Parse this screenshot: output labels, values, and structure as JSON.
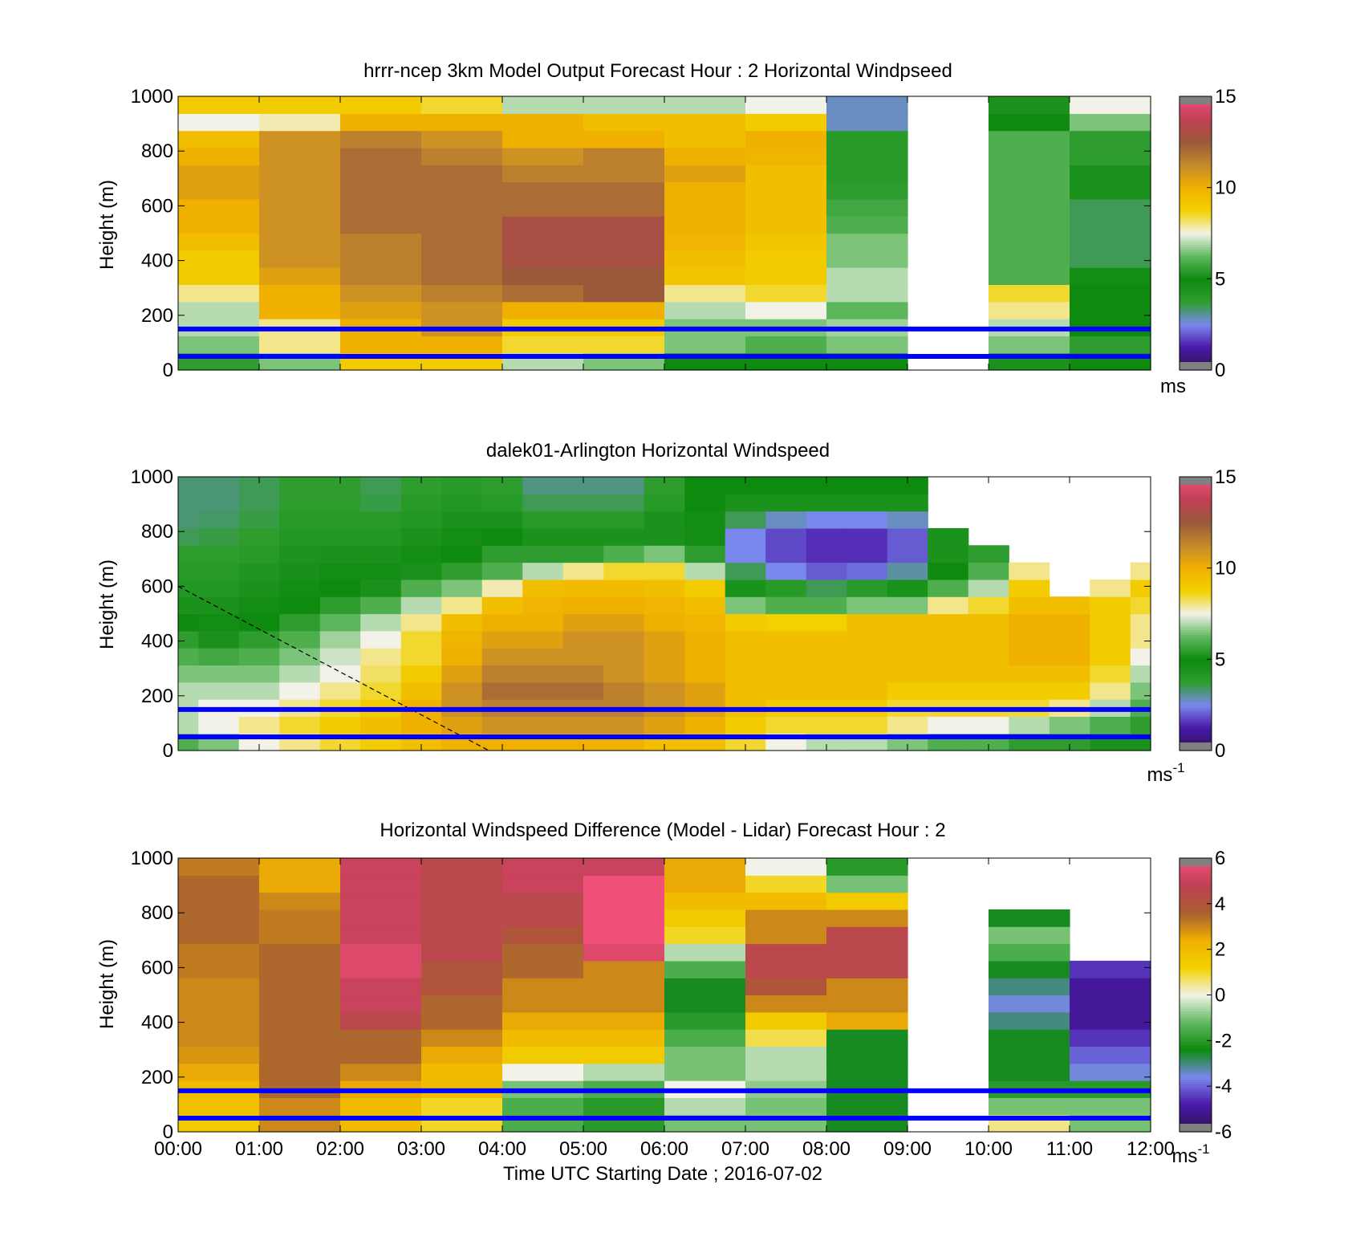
{
  "colors": {
    "background": "#ffffff",
    "ref_lines": "#0000ff",
    "speed_scale": [
      "#2a1650",
      "#4a18a8",
      "#7a88ee",
      "#2f9e2f",
      "#0e8a0e",
      "#5fb85f",
      "#f2f2e8",
      "#f2d200",
      "#f0b000",
      "#c58a2c",
      "#9a5a3a",
      "#c04055",
      "#f0507a"
    ],
    "diff_scale": [
      "#2a1650",
      "#4a18a8",
      "#7a88ee",
      "#0e8a0e",
      "#5fb85f",
      "#f2f2e8",
      "#f2d200",
      "#f0b000",
      "#a86030",
      "#c04055",
      "#f0507a"
    ]
  },
  "chart_data": [
    {
      "id": "model",
      "type": "heatmap",
      "title": "hrrr-ncep 3km Model Output   Forecast Hour : 2 Horizontal Windpseed",
      "xlabel": "",
      "ylabel": "Height (m)",
      "xlim": [
        "00:00",
        "12:00"
      ],
      "ylim": [
        0,
        1000
      ],
      "y_ticks": [
        "0",
        "200",
        "400",
        "600",
        "800",
        "1000"
      ],
      "show_x_tick_labels": false,
      "hour_columns": [
        [
          5.5,
          6.5,
          7,
          7,
          8,
          9,
          9,
          9.5,
          10,
          10,
          10.5,
          10.5,
          10,
          9.5,
          7.5,
          9
        ],
        [
          6.5,
          8,
          8,
          10,
          10,
          10.5,
          11,
          11,
          11,
          11,
          11,
          11,
          11,
          11,
          7.8,
          9
        ],
        [
          9,
          10,
          10,
          10.5,
          11,
          11.5,
          11.5,
          11.5,
          12,
          12,
          12,
          12,
          12,
          11.5,
          10,
          9
        ],
        [
          9,
          10,
          11,
          11,
          11.5,
          12,
          12,
          12,
          12,
          12,
          12,
          12,
          11.5,
          11,
          10,
          8.5
        ],
        [
          7,
          8.5,
          9,
          10,
          12,
          12.5,
          13,
          13,
          13,
          12,
          12,
          11.5,
          11,
          10,
          10,
          7
        ],
        [
          6.5,
          8.5,
          9,
          10,
          12.5,
          12.5,
          13,
          13,
          13,
          12,
          12,
          11.5,
          11.5,
          10,
          9.5,
          7
        ],
        [
          5,
          6.5,
          6.5,
          7,
          8,
          9.2,
          9.5,
          9.8,
          10,
          10,
          10,
          10.5,
          10,
          9.5,
          9.5,
          7
        ],
        [
          5,
          6,
          6.5,
          7.5,
          8.5,
          9,
          9,
          9.2,
          9.5,
          9.5,
          9.5,
          9.5,
          9.8,
          10,
          9,
          7.5
        ],
        [
          5,
          6.5,
          6.8,
          6.2,
          7,
          7,
          6.5,
          6.5,
          6,
          5.8,
          5.5,
          4,
          4,
          4,
          2.8,
          2.8
        ],
        [
          null,
          null,
          null,
          null,
          null,
          null,
          null,
          null,
          null,
          null,
          null,
          null,
          null,
          null,
          null,
          null
        ],
        [
          4.5,
          6.5,
          7,
          8,
          8.5,
          6,
          6,
          6,
          6,
          6,
          6,
          6,
          6,
          6,
          5,
          4.5
        ],
        [
          5,
          5.5,
          5,
          5,
          5,
          4.8,
          3.5,
          3.5,
          3.5,
          3.5,
          4.5,
          4.5,
          5.5,
          5.5,
          6.5,
          7.5
        ]
      ],
      "colorbar": {
        "min": 0,
        "max": 15,
        "ticks": [
          "0",
          "5",
          "10",
          "15"
        ],
        "unit": "ms",
        "unit_sup": ""
      },
      "ref_heights_m": [
        50,
        150
      ]
    },
    {
      "id": "lidar",
      "type": "heatmap",
      "title": "dalek01-Arlington  Horizontal Windspeed",
      "xlabel": "",
      "ylabel": "Height (m)",
      "xlim": [
        "00:00",
        "12:00"
      ],
      "ylim": [
        0,
        1000
      ],
      "y_ticks": [
        "0",
        "200",
        "400",
        "600",
        "800",
        "1000"
      ],
      "show_x_tick_labels": false,
      "timepoints_hours": [
        0,
        0.5,
        1,
        1.5,
        2,
        2.5,
        3,
        3.5,
        4,
        4.5,
        5,
        5.5,
        6,
        6.5,
        7,
        7.5,
        8,
        8.5,
        9,
        9.5,
        10,
        10.5,
        11,
        11.5,
        12
      ],
      "profiles": [
        [
          6,
          7,
          7,
          7,
          6.5,
          6,
          5.5,
          5,
          4.5,
          4.2,
          4,
          3.8,
          3.5,
          3.3,
          3.3,
          3.3
        ],
        [
          6.5,
          7.5,
          7.5,
          7,
          6.5,
          5.8,
          5.2,
          4.8,
          4.5,
          4.2,
          4,
          3.8,
          3.6,
          3.4,
          3.3,
          3.3
        ],
        [
          7.5,
          8,
          7.5,
          7,
          6.5,
          6,
          5.5,
          5,
          4.8,
          4.5,
          4.3,
          4,
          3.8,
          3.6,
          3.5,
          3.5
        ],
        [
          8,
          8.5,
          8,
          7.5,
          7,
          6.5,
          6,
          5.5,
          5,
          4.8,
          4.6,
          4.4,
          4.2,
          4,
          3.8,
          3.8
        ],
        [
          8.5,
          9,
          8.5,
          8,
          7.5,
          7.2,
          6.8,
          6.2,
          5.5,
          5,
          4.8,
          4.5,
          4.2,
          4,
          3.8,
          3.8
        ],
        [
          9,
          9.5,
          9,
          8.5,
          8.2,
          8,
          7.5,
          7,
          6,
          5.2,
          4.8,
          4.5,
          4.2,
          4,
          3.6,
          3.5
        ],
        [
          9.5,
          10,
          10,
          9.5,
          9,
          8.5,
          8.5,
          8,
          7,
          6,
          5.2,
          4.8,
          4.5,
          4.2,
          4,
          3.8
        ],
        [
          10,
          10.5,
          11,
          11,
          10.5,
          10,
          9.8,
          9.5,
          8,
          6.5,
          5.5,
          5,
          4.8,
          4.5,
          4.2,
          4
        ],
        [
          10,
          11,
          11.5,
          12,
          11.5,
          11,
          10.5,
          10,
          9.5,
          7.8,
          6,
          5.5,
          5,
          4.5,
          4,
          3.8
        ],
        [
          10,
          11,
          11.5,
          12,
          11.5,
          11,
          10.5,
          10,
          9.8,
          9.5,
          7,
          5.5,
          4.5,
          4,
          3.5,
          3.2
        ],
        [
          10,
          11,
          11.5,
          12,
          11.5,
          11,
          11,
          10.5,
          10,
          9.6,
          8,
          5.5,
          4.5,
          4,
          3.5,
          3.2
        ],
        [
          10,
          11,
          11.5,
          11.5,
          11,
          11,
          11,
          10.5,
          10,
          9.6,
          8.5,
          6,
          4.5,
          4,
          3.5,
          3.2
        ],
        [
          9.5,
          10.5,
          11,
          11,
          10.5,
          10.5,
          10.5,
          10,
          9.8,
          9.5,
          8.5,
          6.5,
          5.2,
          4.5,
          4,
          3.8
        ],
        [
          9.5,
          10,
          10.5,
          10.5,
          10,
          10,
          10,
          9.8,
          9.5,
          9,
          7,
          5.5,
          4.8,
          4.8,
          5,
          5
        ],
        [
          8.5,
          9,
          9.5,
          9.5,
          9.5,
          9.5,
          9.5,
          9,
          6.5,
          4.5,
          3.5,
          2.5,
          2.5,
          3.5,
          4.5,
          5
        ],
        [
          7.5,
          8.5,
          9,
          9.5,
          9.5,
          9.5,
          9.5,
          8.8,
          6,
          4,
          2.5,
          1.8,
          1.8,
          2.8,
          4.5,
          5
        ],
        [
          7,
          8.5,
          9,
          9.5,
          9.5,
          9.5,
          9.5,
          8.8,
          6,
          3.5,
          2,
          1.5,
          1.5,
          2.5,
          4.5,
          5
        ],
        [
          7,
          8.5,
          9,
          9.5,
          9.5,
          9.5,
          9.5,
          9.5,
          6.5,
          4,
          2.2,
          1.5,
          1.5,
          2.5,
          4.5,
          5
        ],
        [
          6.5,
          8,
          8.5,
          9,
          9.5,
          9.5,
          9.5,
          9.5,
          6.5,
          4.5,
          3,
          2,
          2,
          2.8,
          4.5,
          5
        ],
        [
          6,
          7.5,
          8.5,
          9,
          9.5,
          9.5,
          9.5,
          9.5,
          8,
          6,
          5,
          4.5,
          4.5,
          null,
          null,
          null
        ],
        [
          6,
          7.5,
          8.5,
          9,
          9.5,
          9.5,
          9.5,
          9.5,
          8.5,
          7,
          6,
          5.5,
          null,
          null,
          null,
          null
        ],
        [
          5.5,
          7,
          8.5,
          9,
          9.5,
          10,
          10,
          10,
          9.5,
          9,
          8,
          null,
          null,
          null,
          null,
          null
        ],
        [
          5.5,
          6.5,
          8,
          9,
          9.5,
          10,
          10,
          10,
          9.5,
          null,
          null,
          null,
          null,
          null,
          null,
          null
        ],
        [
          4.5,
          6,
          7,
          8,
          8.5,
          9,
          9,
          9,
          9,
          8,
          null,
          null,
          null,
          null,
          null,
          null
        ],
        [
          4.5,
          5.5,
          6,
          6.5,
          7,
          7.5,
          8,
          8,
          8.5,
          9,
          8,
          null,
          null,
          null,
          null,
          null
        ]
      ],
      "dashed_line": {
        "start": [
          "00:00",
          600
        ],
        "end": [
          "03:50",
          0
        ]
      },
      "colorbar": {
        "min": 0,
        "max": 15,
        "ticks": [
          "0",
          "5",
          "10",
          "15"
        ],
        "unit": "ms",
        "unit_sup": "-1"
      },
      "ref_heights_m": [
        50,
        150
      ]
    },
    {
      "id": "diff",
      "type": "heatmap",
      "title": "Horizontal Windspeed Difference (Model - Lidar) Forecast Hour : 2",
      "xlabel": "Time UTC  Starting Date ; 2016-07-02",
      "ylabel": "Height (m)",
      "xlim": [
        "00:00",
        "12:00"
      ],
      "ylim": [
        0,
        1000
      ],
      "y_ticks": [
        "0",
        "200",
        "400",
        "600",
        "800",
        "1000"
      ],
      "x_ticks": [
        "00:00",
        "01:00",
        "02:00",
        "03:00",
        "04:00",
        "05:00",
        "06:00",
        "07:00",
        "08:00",
        "09:00",
        "10:00",
        "11:00",
        "12:00"
      ],
      "show_x_tick_labels": true,
      "hour_columns": [
        [
          1.5,
          1.8,
          2,
          2.5,
          2.8,
          3,
          3,
          3,
          3,
          3.2,
          3.2,
          3.5,
          3.5,
          3.5,
          3.5,
          3.2
        ],
        [
          3,
          3,
          3.5,
          3.5,
          3.5,
          3.5,
          3.5,
          3.5,
          3.5,
          3.5,
          3.5,
          3.2,
          3.2,
          3,
          2.5,
          2.5
        ],
        [
          2,
          2,
          2.5,
          3,
          3.5,
          3.5,
          4.5,
          5,
          5,
          5.5,
          5.5,
          5,
          5,
          5,
          5,
          5
        ],
        [
          1,
          1,
          2,
          2,
          2.5,
          3,
          3.5,
          3.5,
          4,
          4,
          4.5,
          4.5,
          4.5,
          4.5,
          4.5,
          4.5
        ],
        [
          -1.5,
          -1.5,
          -1,
          0,
          1.5,
          2,
          2.5,
          3,
          3,
          3.5,
          3.5,
          4,
          4.5,
          4.5,
          5,
          5
        ],
        [
          -2,
          -2,
          -1.5,
          -0.5,
          1.5,
          2,
          2.5,
          3,
          3,
          3,
          5.5,
          7,
          7,
          7,
          7,
          5
        ],
        [
          -1,
          -0.5,
          0,
          -1,
          -1,
          -1.5,
          -2,
          -2.5,
          -2.5,
          -1.5,
          -0.5,
          1,
          1.5,
          2,
          2.5,
          2.5
        ],
        [
          -1,
          -1,
          -0.8,
          -0.5,
          -0.5,
          0.8,
          1.5,
          3,
          4,
          4.5,
          4.5,
          3,
          3,
          2,
          1,
          0
        ],
        [
          -2.5,
          -2.5,
          -2.5,
          -2.5,
          -2.5,
          -2.5,
          2.5,
          3,
          3,
          4.5,
          4.5,
          4.5,
          3,
          1.5,
          -1,
          -2
        ],
        [
          null,
          null,
          null,
          null,
          null,
          null,
          null,
          null,
          null,
          null,
          null,
          null,
          null,
          null,
          null,
          null
        ],
        [
          0.5,
          -1,
          -2,
          -2.5,
          -2.5,
          -2.5,
          -3,
          -3.5,
          -3,
          -2.5,
          -1.5,
          -1,
          -2.5,
          null,
          null,
          null
        ],
        [
          -1,
          -1,
          -2,
          -3.5,
          -4,
          -4.5,
          -5,
          -5,
          -5,
          -4.5,
          null,
          null,
          null,
          null,
          null,
          null
        ]
      ],
      "colorbar": {
        "min": -6,
        "max": 6,
        "ticks": [
          "-6",
          "-4",
          "-2",
          "0",
          "2",
          "4",
          "6"
        ],
        "unit": "ms",
        "unit_sup": "-1"
      },
      "ref_heights_m": [
        50,
        150
      ]
    }
  ]
}
